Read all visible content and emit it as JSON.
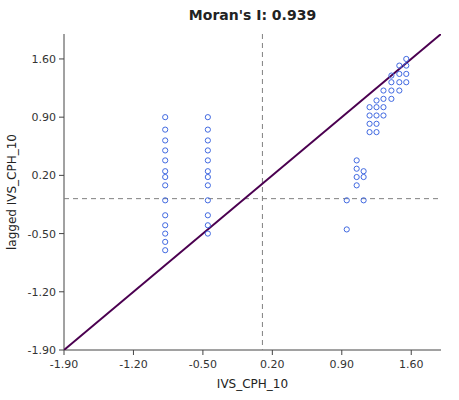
{
  "chart_data": {
    "type": "scatter",
    "title": "Moran's I: 0.939",
    "x_label": "IVS_CPH_10",
    "y_label": "lagged IVS_CPH_10",
    "xlim": [
      -1.9,
      1.9
    ],
    "ylim": [
      -1.9,
      1.9
    ],
    "xticks": [
      {
        "value": -1.9,
        "label": "-1.90"
      },
      {
        "value": -1.2,
        "label": "-1.20"
      },
      {
        "value": -0.5,
        "label": "-0.50"
      },
      {
        "value": 0.2,
        "label": "0.20"
      },
      {
        "value": 0.9,
        "label": "0.90"
      },
      {
        "value": 1.6,
        "label": "1.60"
      }
    ],
    "yticks": [
      {
        "value": -1.9,
        "label": "-1.90"
      },
      {
        "value": -1.2,
        "label": "-1.20"
      },
      {
        "value": -0.5,
        "label": "-0.50"
      },
      {
        "value": 0.2,
        "label": "0.20"
      },
      {
        "value": 0.9,
        "label": "0.90"
      },
      {
        "value": 1.6,
        "label": "1.60"
      }
    ],
    "grid": false,
    "hline": {
      "value": -0.08,
      "color": "gray",
      "line_style": "dashed"
    },
    "vline": {
      "value": 0.1,
      "color": "gray",
      "line_style": "dashed"
    },
    "series": [
      {
        "type": "scatter",
        "color": "#4169E1",
        "marker": "open-circle",
        "x": [
          -0.88,
          -0.88,
          -0.88,
          -0.88,
          -0.88,
          -0.88,
          -0.88,
          -0.88,
          -0.88,
          -0.88,
          -0.88,
          -0.88,
          -0.88,
          -0.88,
          -0.45,
          -0.45,
          -0.45,
          -0.45,
          -0.45,
          -0.45,
          -0.45,
          -0.45,
          -0.45,
          -0.45,
          -0.45,
          -0.45,
          0.95,
          1.12,
          0.95,
          1.05,
          1.05,
          1.05,
          1.05,
          1.12,
          1.12,
          1.18,
          1.18,
          1.18,
          1.18,
          1.25,
          1.25,
          1.25,
          1.25,
          1.25,
          1.32,
          1.32,
          1.32,
          1.32,
          1.4,
          1.4,
          1.4,
          1.4,
          1.48,
          1.48,
          1.48,
          1.48,
          1.55,
          1.55,
          1.55,
          1.55
        ],
        "values": [
          0.9,
          0.75,
          0.62,
          0.5,
          0.38,
          0.25,
          0.18,
          0.08,
          -0.1,
          -0.28,
          -0.4,
          -0.5,
          -0.6,
          -0.7,
          0.9,
          0.75,
          0.62,
          0.5,
          0.38,
          0.25,
          0.18,
          0.08,
          -0.1,
          -0.28,
          -0.4,
          -0.5,
          -0.1,
          -0.1,
          -0.45,
          0.18,
          0.08,
          0.28,
          0.38,
          0.25,
          0.18,
          0.72,
          0.82,
          0.92,
          1.02,
          0.72,
          0.82,
          0.92,
          1.02,
          1.1,
          0.92,
          1.02,
          1.12,
          1.22,
          1.12,
          1.22,
          1.32,
          1.4,
          1.22,
          1.32,
          1.42,
          1.52,
          1.32,
          1.42,
          1.52,
          1.6
        ]
      },
      {
        "type": "line",
        "color": "#4B0050",
        "line_style": "solid",
        "x": [
          -1.9,
          1.9
        ],
        "values": [
          -1.9,
          1.9
        ]
      }
    ]
  }
}
